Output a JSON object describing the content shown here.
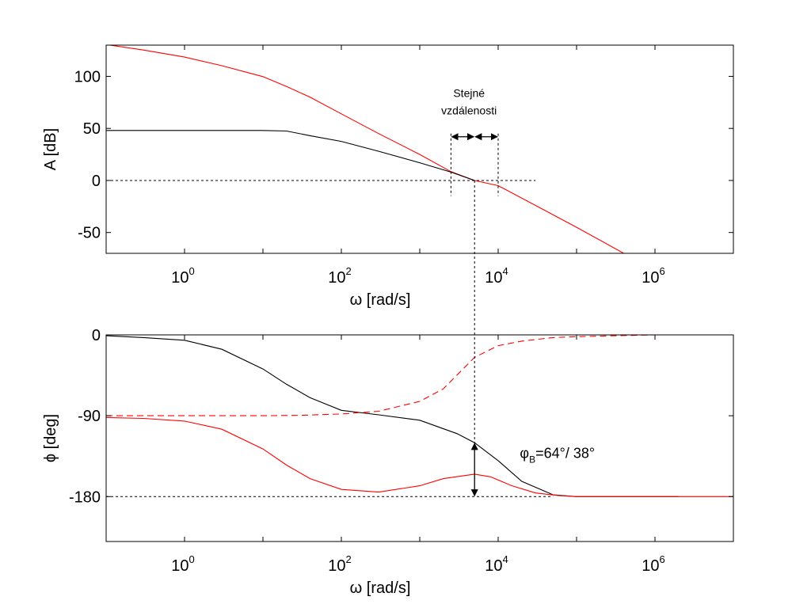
{
  "chart_data": [
    {
      "type": "line",
      "xscale": "log",
      "xlim": [
        0.1,
        10000000
      ],
      "ylim": [
        -70,
        130
      ],
      "xlabel": "ω [rad/s]",
      "ylabel": "A [dB]",
      "x_ticks": [
        {
          "base": "10",
          "exp": "0",
          "value": 1
        },
        {
          "base": "10",
          "exp": "2",
          "value": 100
        },
        {
          "base": "10",
          "exp": "4",
          "value": 10000
        },
        {
          "base": "10",
          "exp": "6",
          "value": 1000000
        }
      ],
      "y_ticks": [
        {
          "label": "100",
          "value": 100
        },
        {
          "label": "50",
          "value": 50
        },
        {
          "label": "0",
          "value": 0
        },
        {
          "label": "-50",
          "value": -50
        }
      ],
      "series": [
        {
          "color": "#ff0000",
          "dash": "solid",
          "x": [
            0.1,
            0.3,
            1,
            3,
            10,
            20,
            40,
            100,
            300,
            1000,
            2500,
            5000,
            10000,
            30000,
            100000,
            400000
          ],
          "y": [
            130.5,
            125.3,
            118.5,
            110.2,
            99.7,
            90.3,
            80,
            64,
            45,
            25,
            8.5,
            0,
            -5,
            -24,
            -45,
            -70
          ]
        },
        {
          "color": "#000000",
          "dash": "solid",
          "x": [
            0.1,
            1,
            10,
            20,
            40,
            100,
            300,
            1000,
            2500,
            5000
          ],
          "y": [
            48,
            48,
            48,
            47.5,
            43,
            37.5,
            28,
            17,
            8,
            0
          ]
        }
      ],
      "reference_lines": [
        {
          "y": 0,
          "x_from": 0.1,
          "x_to": 30000
        }
      ],
      "markers": [
        {
          "x": 2500,
          "y_from": -15,
          "y_to": 45
        },
        {
          "x": 10000,
          "y_from": -15,
          "y_to": 45
        }
      ],
      "annotation": {
        "lines": [
          "Stejné",
          "vzdálenosti"
        ],
        "arrow_y": 42,
        "arrows": [
          [
            2500,
            5000
          ],
          [
            5000,
            10000
          ]
        ]
      },
      "connector_x": 5000
    },
    {
      "type": "line",
      "xscale": "log",
      "xlim": [
        0.1,
        10000000
      ],
      "ylim": [
        -230,
        0
      ],
      "xlabel": "ω [rad/s]",
      "ylabel": "ϕ [deg]",
      "x_ticks": [
        {
          "base": "10",
          "exp": "0",
          "value": 1
        },
        {
          "base": "10",
          "exp": "2",
          "value": 100
        },
        {
          "base": "10",
          "exp": "4",
          "value": 10000
        },
        {
          "base": "10",
          "exp": "6",
          "value": 1000000
        }
      ],
      "y_ticks": [
        {
          "label": "0",
          "value": 0
        },
        {
          "label": "-90",
          "value": -90
        },
        {
          "label": "-180",
          "value": -180
        }
      ],
      "series": [
        {
          "color": "#000000",
          "dash": "solid",
          "x": [
            0.1,
            0.3,
            1,
            3,
            10,
            20,
            40,
            100,
            300,
            1000,
            3000,
            5000,
            10000,
            20000,
            50000,
            100000,
            300000,
            1000000,
            2000000
          ],
          "y": [
            -1,
            -3,
            -6,
            -16,
            -38,
            -55,
            -70,
            -84,
            -89,
            -95,
            -110,
            -120,
            -140,
            -163,
            -178,
            -180,
            -180,
            -180,
            -180
          ]
        },
        {
          "color": "#ff0000",
          "dash": "solid",
          "x": [
            0.1,
            0.3,
            1,
            3,
            10,
            20,
            40,
            100,
            300,
            1000,
            2000,
            5000,
            8000,
            15000,
            30000,
            60000,
            100000,
            300000,
            1000000,
            10000000
          ],
          "y": [
            -92,
            -93,
            -96,
            -105,
            -127,
            -145,
            -160,
            -172,
            -175,
            -168,
            -160,
            -155,
            -158,
            -168,
            -176,
            -179,
            -180,
            -180,
            -180,
            -180
          ]
        },
        {
          "color": "#ff0000",
          "dash": "dashed",
          "x": [
            0.1,
            1,
            10,
            30,
            100,
            300,
            1000,
            2000,
            5000,
            10000,
            20000,
            50000,
            100000,
            300000,
            1000000,
            10000000
          ],
          "y": [
            -90,
            -90,
            -90,
            -89.5,
            -88,
            -85,
            -74,
            -60,
            -25,
            -12,
            -7,
            -3,
            -2,
            -1,
            0,
            0
          ]
        }
      ],
      "reference_lines": [
        {
          "y": -180,
          "x_from": 0.1,
          "x_to": 50000
        }
      ],
      "margin_arrow": {
        "x": 5000,
        "y_from": -120,
        "y_to": -180
      },
      "annotation": {
        "prefix": "φ",
        "sub": "B",
        "suffix": "=64°/ 38°",
        "x": 15000,
        "y": -130
      }
    }
  ]
}
